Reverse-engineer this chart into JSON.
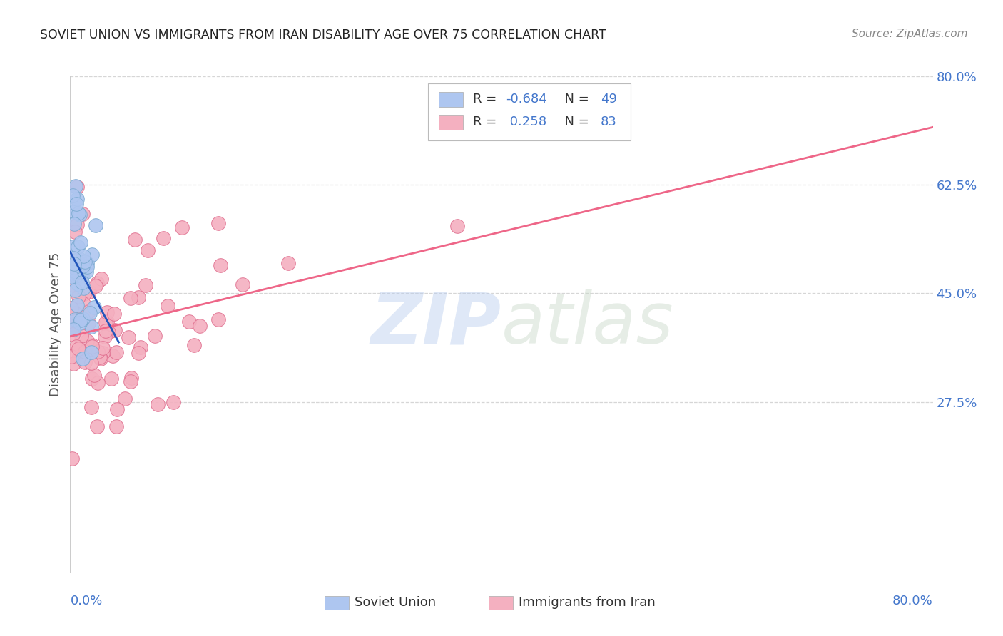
{
  "title": "SOVIET UNION VS IMMIGRANTS FROM IRAN DISABILITY AGE OVER 75 CORRELATION CHART",
  "source": "Source: ZipAtlas.com",
  "ylabel": "Disability Age Over 75",
  "xlim": [
    0.0,
    0.8
  ],
  "ylim": [
    0.0,
    0.8
  ],
  "yticks": [
    0.275,
    0.45,
    0.625,
    0.8
  ],
  "ytick_labels": [
    "27.5%",
    "45.0%",
    "62.5%",
    "80.0%"
  ],
  "background_color": "#ffffff",
  "grid_color": "#cccccc",
  "title_color": "#222222",
  "source_color": "#888888",
  "axis_label_color": "#555555",
  "tick_label_color": "#4477cc",
  "soviet_dot_color": "#aec6f0",
  "soviet_dot_edge": "#7baad0",
  "soviet_line_color": "#2255bb",
  "iran_dot_color": "#f4b0c0",
  "iran_dot_edge": "#e07090",
  "iran_line_color": "#ee6688",
  "watermark_zip": "ZIP",
  "watermark_atlas": "atlas",
  "legend_soviet_r": "-0.684",
  "legend_soviet_n": "49",
  "legend_iran_r": "0.258",
  "legend_iran_n": "83",
  "bottom_label_soviet": "Soviet Union",
  "bottom_label_iran": "Immigrants from Iran"
}
